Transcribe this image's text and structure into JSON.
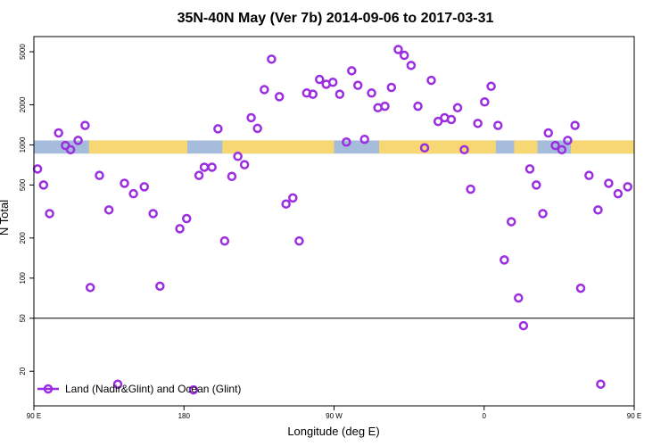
{
  "chart_data": {
    "type": "scatter",
    "title": "35N-40N May (Ver 7b)   2014-09-06 to 2017-03-31",
    "xlabel": "Longitude (deg E)",
    "ylabel": "N Total",
    "x_scale": "longitude_90E_to_90E_wrap",
    "y_scale": "log",
    "xlim": [
      0,
      360
    ],
    "ylim": [
      11,
      6500
    ],
    "x_ticks": [
      {
        "pos": 0,
        "label": "90 E"
      },
      {
        "pos": 90,
        "label": "180"
      },
      {
        "pos": 180,
        "label": "90 W"
      },
      {
        "pos": 270,
        "label": "0"
      },
      {
        "pos": 360,
        "label": "90 E"
      }
    ],
    "y_ticks": [
      {
        "value": 20,
        "label": "20"
      },
      {
        "value": 50,
        "label": "50"
      },
      {
        "value": 100,
        "label": "100"
      },
      {
        "value": 200,
        "label": "200"
      },
      {
        "value": 500,
        "label": "500"
      },
      {
        "value": 1000,
        "label": "1000"
      },
      {
        "value": 2000,
        "label": "2000"
      },
      {
        "value": 5000,
        "label": "5000"
      }
    ],
    "reference_line": {
      "value": 50
    },
    "surface_band": {
      "value_low": 860,
      "value_high": 1080,
      "land_color": "#f7d674",
      "ocean_color": "#a5bcdb",
      "land_segments": [
        [
          33,
          92
        ],
        [
          113,
          180
        ],
        [
          207,
          277
        ],
        [
          288,
          302
        ],
        [
          322,
          360
        ]
      ]
    },
    "series": [
      {
        "name": "Land (Nadir&Glint) and Ocean (Glint)",
        "color": "#9b2ee0",
        "points": [
          [
            2.2,
            660
          ],
          [
            5.8,
            500
          ],
          [
            9.4,
            305
          ],
          [
            14.8,
            1230
          ],
          [
            18.9,
            990
          ],
          [
            22,
            920
          ],
          [
            26.5,
            1080
          ],
          [
            30.7,
            1400
          ],
          [
            33.8,
            85
          ],
          [
            39.3,
            590
          ],
          [
            45,
            325
          ],
          [
            50.3,
            16
          ],
          [
            54.3,
            515
          ],
          [
            59.7,
            430
          ],
          [
            66.2,
            485
          ],
          [
            71.5,
            305
          ],
          [
            75.6,
            87
          ],
          [
            87.5,
            235
          ],
          [
            91.6,
            280
          ],
          [
            95.7,
            14.5
          ],
          [
            99,
            590
          ],
          [
            102.2,
            680
          ],
          [
            106.8,
            680
          ],
          [
            110.4,
            1320
          ],
          [
            114.4,
            190
          ],
          [
            118.7,
            580
          ],
          [
            122.3,
            820
          ],
          [
            126.3,
            710
          ],
          [
            130.3,
            1600
          ],
          [
            134.1,
            1330
          ],
          [
            138.2,
            2600
          ],
          [
            142.5,
            4400
          ],
          [
            147.2,
            2300
          ],
          [
            151.2,
            360
          ],
          [
            155.3,
            400
          ],
          [
            159.1,
            190
          ],
          [
            163.6,
            2450
          ],
          [
            167.3,
            2400
          ],
          [
            171.3,
            3100
          ],
          [
            175.3,
            2850
          ],
          [
            179.3,
            2950
          ],
          [
            183.4,
            2400
          ],
          [
            187.4,
            1050
          ],
          [
            190.6,
            3600
          ],
          [
            194.3,
            2800
          ],
          [
            198.3,
            1100
          ],
          [
            202.5,
            2450
          ],
          [
            206.3,
            1900
          ],
          [
            210.5,
            1950
          ],
          [
            214.4,
            2700
          ],
          [
            218.5,
            5200
          ],
          [
            222.1,
            4700
          ],
          [
            226.2,
            3950
          ],
          [
            230.3,
            1950
          ],
          [
            234.3,
            950
          ],
          [
            238.3,
            3050
          ],
          [
            242.4,
            1500
          ],
          [
            246.3,
            1600
          ],
          [
            250.3,
            1550
          ],
          [
            254.1,
            1900
          ],
          [
            258.1,
            920
          ],
          [
            261.9,
            465
          ],
          [
            266.2,
            1450
          ],
          [
            270.3,
            2100
          ],
          [
            274.2,
            2750
          ],
          [
            278.3,
            1400
          ],
          [
            282.1,
            137
          ],
          [
            286.3,
            265
          ],
          [
            290.6,
            71
          ],
          [
            293.6,
            44
          ],
          [
            297.4,
            660
          ],
          [
            301.3,
            500
          ],
          [
            305.2,
            305
          ],
          [
            308.5,
            1230
          ],
          [
            312.7,
            990
          ],
          [
            316.6,
            920
          ],
          [
            320.1,
            1080
          ],
          [
            324.5,
            1400
          ],
          [
            327.9,
            84
          ],
          [
            332.9,
            590
          ],
          [
            338.3,
            325
          ],
          [
            339.9,
            16
          ],
          [
            344.7,
            515
          ],
          [
            350.3,
            430
          ],
          [
            356.1,
            485
          ],
          [
            361.5,
            305
          ],
          [
            365.2,
            86
          ]
        ]
      }
    ],
    "legend": {
      "position": "bottom-left"
    }
  }
}
